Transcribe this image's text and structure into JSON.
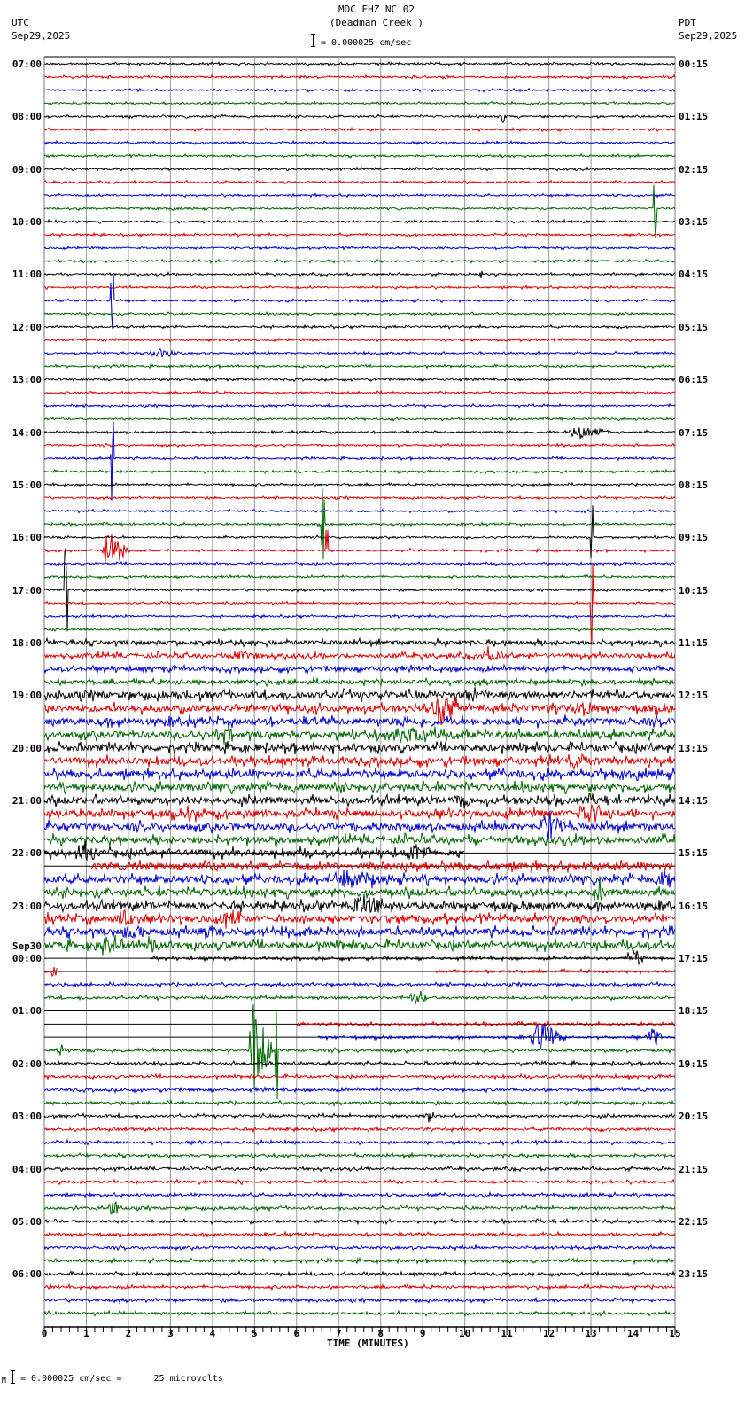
{
  "header": {
    "station": "MDC EHZ NC 02",
    "location": "(Deadman Creek )",
    "scale_text": "= 0.000025 cm/sec",
    "left_tz": "UTC",
    "left_date": "Sep29,2025",
    "right_tz": "PDT",
    "right_date": "Sep29,2025"
  },
  "footer": {
    "scale_text": "= 0.000025 cm/sec =      25 microvolts",
    "xlabel": "TIME (MINUTES)"
  },
  "colors": {
    "trace_cycle": [
      "#000000",
      "#dd0000",
      "#0000cc",
      "#006600"
    ],
    "grid": "#888888",
    "axis": "#000000"
  },
  "chart_data": {
    "type": "line",
    "title": "MDC EHZ NC 02 (Deadman Creek )",
    "subtitle": "Helicorder seismogram, 15 minutes per trace line",
    "xlabel": "TIME (MINUTES)",
    "ylabel": "",
    "xlim": [
      0,
      15
    ],
    "x_ticks": [
      0,
      1,
      2,
      3,
      4,
      5,
      6,
      7,
      8,
      9,
      10,
      11,
      12,
      13,
      14,
      15
    ],
    "grid": true,
    "traces_per_hour": 4,
    "minutes_per_trace": 15,
    "scale": "0.000025 cm/sec = 25 microvolts",
    "left_labels": [
      {
        "row": 0,
        "text": "07:00"
      },
      {
        "row": 4,
        "text": "08:00"
      },
      {
        "row": 8,
        "text": "09:00"
      },
      {
        "row": 12,
        "text": "10:00"
      },
      {
        "row": 16,
        "text": "11:00"
      },
      {
        "row": 20,
        "text": "12:00"
      },
      {
        "row": 24,
        "text": "13:00"
      },
      {
        "row": 28,
        "text": "14:00"
      },
      {
        "row": 32,
        "text": "15:00"
      },
      {
        "row": 36,
        "text": "16:00"
      },
      {
        "row": 40,
        "text": "17:00"
      },
      {
        "row": 44,
        "text": "18:00"
      },
      {
        "row": 48,
        "text": "19:00"
      },
      {
        "row": 52,
        "text": "20:00"
      },
      {
        "row": 56,
        "text": "21:00"
      },
      {
        "row": 60,
        "text": "22:00"
      },
      {
        "row": 64,
        "text": "23:00"
      },
      {
        "row": 68,
        "text": "00:00",
        "date": "Sep30"
      },
      {
        "row": 72,
        "text": "01:00"
      },
      {
        "row": 76,
        "text": "02:00"
      },
      {
        "row": 80,
        "text": "03:00"
      },
      {
        "row": 84,
        "text": "04:00"
      },
      {
        "row": 88,
        "text": "05:00"
      },
      {
        "row": 92,
        "text": "06:00"
      }
    ],
    "right_labels": [
      {
        "row": 0,
        "text": "00:15"
      },
      {
        "row": 4,
        "text": "01:15"
      },
      {
        "row": 8,
        "text": "02:15"
      },
      {
        "row": 12,
        "text": "03:15"
      },
      {
        "row": 16,
        "text": "04:15"
      },
      {
        "row": 20,
        "text": "05:15"
      },
      {
        "row": 24,
        "text": "06:15"
      },
      {
        "row": 28,
        "text": "07:15"
      },
      {
        "row": 32,
        "text": "08:15"
      },
      {
        "row": 36,
        "text": "09:15"
      },
      {
        "row": 40,
        "text": "10:15"
      },
      {
        "row": 44,
        "text": "11:15"
      },
      {
        "row": 48,
        "text": "12:15"
      },
      {
        "row": 52,
        "text": "13:15"
      },
      {
        "row": 56,
        "text": "14:15"
      },
      {
        "row": 60,
        "text": "15:15"
      },
      {
        "row": 64,
        "text": "16:15"
      },
      {
        "row": 68,
        "text": "17:15"
      },
      {
        "row": 72,
        "text": "18:15"
      },
      {
        "row": 76,
        "text": "19:15"
      },
      {
        "row": 80,
        "text": "20:15"
      },
      {
        "row": 84,
        "text": "21:15"
      },
      {
        "row": 88,
        "text": "22:15"
      },
      {
        "row": 92,
        "text": "23:15"
      }
    ],
    "noise_level_by_row": {
      "quiet_rows": "0-43 (low amplitude ~1-2px)",
      "noisy_rows": "44-67 (elevated noise ~3-6px)",
      "late_rows": "68-95 (low-moderate ~2px)"
    },
    "gaps": [
      {
        "row": 60,
        "from_min": 10.0,
        "to_min": 15.0
      },
      {
        "row": 61,
        "from_min": 0.0,
        "to_min": 1.1
      },
      {
        "row": 68,
        "from_min": 0.0,
        "to_min": 2.5
      },
      {
        "row": 69,
        "from_min": 0.3,
        "to_min": 9.3
      },
      {
        "row": 72,
        "from_min": 0.0,
        "to_min": 15.0,
        "flat": true
      },
      {
        "row": 73,
        "from_min": 0.0,
        "to_min": 6.0
      },
      {
        "row": 74,
        "from_min": 0.0,
        "to_min": 6.5
      }
    ],
    "events": [
      {
        "row": 4,
        "min": 10.9,
        "amp": 14
      },
      {
        "row": 11,
        "min": 14.5,
        "amp": 45,
        "color_row": 13
      },
      {
        "row": 16,
        "min": 10.35,
        "amp": 6
      },
      {
        "row": 18,
        "min": 1.6,
        "amp": 60
      },
      {
        "row": 22,
        "min": 2.5,
        "amp": 5,
        "dur": 0.8
      },
      {
        "row": 28,
        "min": 12.5,
        "amp": 8,
        "dur": 1.0
      },
      {
        "row": 30,
        "min": 1.6,
        "amp": 60
      },
      {
        "row": 35,
        "min": 6.6,
        "amp": 55
      },
      {
        "row": 37,
        "min": 1.4,
        "amp": 22,
        "dur": 0.6
      },
      {
        "row": 37,
        "min": 6.7,
        "amp": 25
      },
      {
        "row": 37,
        "min": 8.7,
        "amp": 15
      },
      {
        "row": 36,
        "min": 13.0,
        "amp": 45
      },
      {
        "row": 41,
        "min": 13.0,
        "amp": 55
      },
      {
        "row": 40,
        "min": 0.5,
        "amp": 60
      },
      {
        "row": 45,
        "min": 4.5,
        "amp": 7,
        "dur": 0.6
      },
      {
        "row": 45,
        "min": 10.3,
        "amp": 7,
        "dur": 0.8
      },
      {
        "row": 48,
        "min": 10.0,
        "amp": 9,
        "dur": 0.6
      },
      {
        "row": 49,
        "min": 9.3,
        "amp": 18,
        "dur": 0.6
      },
      {
        "row": 49,
        "min": 12.6,
        "amp": 9,
        "dur": 0.6
      },
      {
        "row": 51,
        "min": 8.3,
        "amp": 12,
        "dur": 1.2
      },
      {
        "row": 51,
        "min": 4.1,
        "amp": 9,
        "dur": 0.5
      },
      {
        "row": 53,
        "min": 12.5,
        "amp": 9,
        "dur": 0.8
      },
      {
        "row": 56,
        "min": 9.8,
        "amp": 9,
        "dur": 0.6
      },
      {
        "row": 57,
        "min": 3.4,
        "amp": 10,
        "dur": 0.5
      },
      {
        "row": 57,
        "min": 12.7,
        "amp": 12,
        "dur": 1.0
      },
      {
        "row": 58,
        "min": 11.8,
        "amp": 18,
        "dur": 0.6
      },
      {
        "row": 60,
        "min": 8.6,
        "amp": 9,
        "dur": 0.6
      },
      {
        "row": 60,
        "min": 0.8,
        "amp": 8,
        "dur": 0.6
      },
      {
        "row": 62,
        "min": 6.8,
        "amp": 10,
        "dur": 1.2
      },
      {
        "row": 62,
        "min": 14.6,
        "amp": 12,
        "dur": 0.6
      },
      {
        "row": 63,
        "min": 13.1,
        "amp": 14,
        "dur": 0.3
      },
      {
        "row": 64,
        "min": 7.3,
        "amp": 12,
        "dur": 0.8
      },
      {
        "row": 65,
        "min": 1.7,
        "amp": 10,
        "dur": 0.5
      },
      {
        "row": 65,
        "min": 4.2,
        "amp": 10,
        "dur": 0.7
      },
      {
        "row": 66,
        "min": 1.8,
        "amp": 9,
        "dur": 0.6
      },
      {
        "row": 66,
        "min": 3.7,
        "amp": 8,
        "dur": 0.6
      },
      {
        "row": 67,
        "min": 1.2,
        "amp": 10,
        "dur": 0.8
      },
      {
        "row": 67,
        "min": 2.4,
        "amp": 10,
        "dur": 0.4
      },
      {
        "row": 68,
        "min": 13.9,
        "amp": 12,
        "dur": 0.4
      },
      {
        "row": 69,
        "min": 0.2,
        "amp": 9,
        "dur": 0.3
      },
      {
        "row": 71,
        "min": 8.7,
        "amp": 8,
        "dur": 0.5
      },
      {
        "row": 74,
        "min": 11.6,
        "amp": 16,
        "dur": 0.8
      },
      {
        "row": 74,
        "min": 14.4,
        "amp": 12,
        "dur": 0.3
      },
      {
        "row": 75,
        "min": 0.3,
        "amp": 10,
        "dur": 0.2
      },
      {
        "row": 75,
        "min": 4.9,
        "amp": 65,
        "dur": 0.5
      },
      {
        "row": 75,
        "min": 5.5,
        "amp": 70
      },
      {
        "row": 80,
        "min": 9.1,
        "amp": 9,
        "dur": 0.2
      },
      {
        "row": 87,
        "min": 1.55,
        "amp": 10,
        "dur": 0.3
      }
    ]
  }
}
